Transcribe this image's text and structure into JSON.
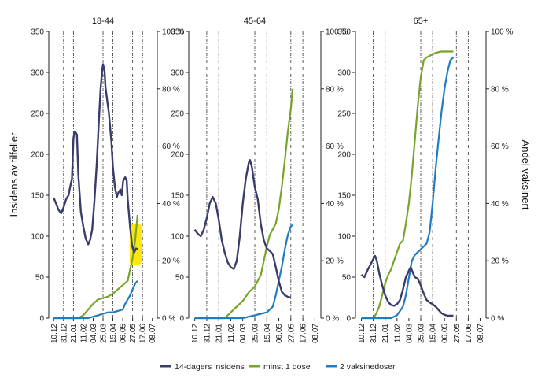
{
  "chart_data": {
    "type": "line",
    "ylabel_left": "Insidens av tilfeller",
    "ylabel_right": "Andel vaksinert",
    "left_ylim": [
      0,
      350
    ],
    "left_ticks": [
      "0",
      "50",
      "100",
      "150",
      "200",
      "250",
      "300",
      "350"
    ],
    "right_ylim": [
      0,
      100
    ],
    "right_ticks": [
      "0 %",
      "20 %",
      "40 %",
      "60 %",
      "80 %",
      "100 %"
    ],
    "x_labels": [
      "10.12",
      "31.12",
      "21.01",
      "11.02",
      "04.03",
      "25.03",
      "15.04",
      "06.05",
      "27.05",
      "17.06",
      "08.07"
    ],
    "vlines": [
      "31.12",
      "21.01",
      "25.03",
      "15.04",
      "27.05",
      "17.06"
    ],
    "colors": {
      "incidence": "#3a3c6a",
      "dose1": "#77a52b",
      "dose2": "#1f7cc0"
    },
    "panels": [
      {
        "title": "18-44",
        "incidence": [
          [
            0,
            147
          ],
          [
            1,
            132
          ],
          [
            1.5,
            128
          ],
          [
            2,
            135
          ],
          [
            2.5,
            145
          ],
          [
            3,
            150
          ],
          [
            3.4,
            162
          ],
          [
            3.7,
            170
          ],
          [
            4,
            220
          ],
          [
            4.3,
            228
          ],
          [
            4.7,
            224
          ],
          [
            5,
            175
          ],
          [
            5.5,
            130
          ],
          [
            6,
            112
          ],
          [
            6.5,
            97
          ],
          [
            7,
            90
          ],
          [
            7.4,
            96
          ],
          [
            7.8,
            108
          ],
          [
            8.2,
            138
          ],
          [
            8.7,
            185
          ],
          [
            9.1,
            235
          ],
          [
            9.5,
            280
          ],
          [
            9.8,
            300
          ],
          [
            10,
            310
          ],
          [
            10.3,
            302
          ],
          [
            10.5,
            282
          ],
          [
            10.8,
            268
          ],
          [
            11.2,
            250
          ],
          [
            11.7,
            215
          ],
          [
            12,
            185
          ],
          [
            12.4,
            160
          ],
          [
            12.8,
            148
          ],
          [
            13.1,
            153
          ],
          [
            13.5,
            157
          ],
          [
            13.8,
            150
          ],
          [
            14.1,
            168
          ],
          [
            14.5,
            172
          ],
          [
            14.8,
            168
          ],
          [
            15,
            145
          ],
          [
            15.5,
            110
          ],
          [
            15.9,
            88
          ],
          [
            16.3,
            80
          ],
          [
            16.7,
            85
          ],
          [
            17.1,
            84
          ]
        ],
        "dose1": [
          [
            0,
            0
          ],
          [
            5,
            0
          ],
          [
            6,
            1
          ],
          [
            7,
            3
          ],
          [
            8,
            5
          ],
          [
            9,
            6.5
          ],
          [
            10,
            7
          ],
          [
            11,
            7.5
          ],
          [
            12,
            8.5
          ],
          [
            13,
            10
          ],
          [
            14,
            11.5
          ],
          [
            15,
            13
          ],
          [
            15.5,
            17
          ],
          [
            16,
            21
          ],
          [
            16.5,
            27
          ],
          [
            17,
            36
          ]
        ],
        "dose2": [
          [
            0,
            0
          ],
          [
            7,
            0
          ],
          [
            8,
            0.5
          ],
          [
            9,
            1
          ],
          [
            10,
            1.5
          ],
          [
            11,
            2
          ],
          [
            12,
            2
          ],
          [
            13,
            2.5
          ],
          [
            14,
            3
          ],
          [
            14.5,
            5
          ],
          [
            15,
            6.5
          ],
          [
            15.5,
            8
          ],
          [
            16,
            10
          ],
          [
            16.5,
            12
          ],
          [
            17,
            13
          ]
        ]
      },
      {
        "title": "45-64",
        "incidence": [
          [
            0,
            108
          ],
          [
            0.5,
            103
          ],
          [
            1,
            100
          ],
          [
            1.5,
            108
          ],
          [
            2,
            122
          ],
          [
            2.5,
            140
          ],
          [
            3,
            148
          ],
          [
            3.5,
            140
          ],
          [
            4,
            120
          ],
          [
            4.5,
            95
          ],
          [
            5,
            80
          ],
          [
            5.5,
            68
          ],
          [
            6,
            62
          ],
          [
            6.5,
            60
          ],
          [
            7,
            70
          ],
          [
            7.5,
            100
          ],
          [
            8,
            140
          ],
          [
            8.5,
            170
          ],
          [
            9,
            190
          ],
          [
            9.2,
            193
          ],
          [
            9.5,
            185
          ],
          [
            10,
            160
          ],
          [
            10.5,
            145
          ],
          [
            11,
            115
          ],
          [
            11.5,
            95
          ],
          [
            12,
            85
          ],
          [
            12.5,
            82
          ],
          [
            13,
            78
          ],
          [
            13.5,
            62
          ],
          [
            14,
            45
          ],
          [
            14.5,
            32
          ],
          [
            15,
            28
          ],
          [
            15.5,
            26
          ],
          [
            16,
            25
          ]
        ],
        "dose1": [
          [
            0,
            0
          ],
          [
            5,
            0
          ],
          [
            6,
            2
          ],
          [
            7,
            4
          ],
          [
            8,
            6
          ],
          [
            9,
            9
          ],
          [
            10,
            11
          ],
          [
            11,
            15
          ],
          [
            11.5,
            20
          ],
          [
            12,
            25
          ],
          [
            12.5,
            29
          ],
          [
            13,
            31
          ],
          [
            13.5,
            33
          ],
          [
            14,
            38
          ],
          [
            14.5,
            46
          ],
          [
            15,
            55
          ],
          [
            15.5,
            65
          ],
          [
            16,
            73
          ],
          [
            16.3,
            80
          ]
        ],
        "dose2": [
          [
            0,
            0
          ],
          [
            8,
            0
          ],
          [
            9,
            0.5
          ],
          [
            10,
            1
          ],
          [
            11,
            1.5
          ],
          [
            12,
            2
          ],
          [
            12.5,
            3
          ],
          [
            13,
            4
          ],
          [
            13.5,
            8
          ],
          [
            14,
            13
          ],
          [
            14.5,
            18
          ],
          [
            15,
            24
          ],
          [
            15.5,
            29
          ],
          [
            16,
            32
          ],
          [
            16.3,
            32.5
          ]
        ]
      },
      {
        "title": "65+",
        "incidence": [
          [
            0,
            53
          ],
          [
            0.5,
            50
          ],
          [
            1,
            58
          ],
          [
            1.5,
            65
          ],
          [
            2,
            72
          ],
          [
            2.3,
            76
          ],
          [
            2.6,
            70
          ],
          [
            3,
            55
          ],
          [
            3.5,
            40
          ],
          [
            4,
            28
          ],
          [
            4.5,
            20
          ],
          [
            5,
            16
          ],
          [
            5.5,
            15
          ],
          [
            6,
            17
          ],
          [
            6.5,
            22
          ],
          [
            7,
            35
          ],
          [
            7.5,
            50
          ],
          [
            8,
            58
          ],
          [
            8.3,
            62
          ],
          [
            8.7,
            55
          ],
          [
            9,
            50
          ],
          [
            9.5,
            48
          ],
          [
            10,
            40
          ],
          [
            10.5,
            30
          ],
          [
            11,
            22
          ],
          [
            11.5,
            19
          ],
          [
            12,
            17
          ],
          [
            12.5,
            14
          ],
          [
            13,
            10
          ],
          [
            13.5,
            6
          ],
          [
            14,
            4
          ],
          [
            14.5,
            3
          ],
          [
            15,
            3
          ],
          [
            15.5,
            3
          ]
        ],
        "dose1": [
          [
            0,
            0
          ],
          [
            2,
            0
          ],
          [
            2.5,
            1.5
          ],
          [
            3,
            4
          ],
          [
            3.5,
            8
          ],
          [
            4,
            12
          ],
          [
            4.5,
            15
          ],
          [
            5,
            17
          ],
          [
            5.5,
            20
          ],
          [
            6,
            23
          ],
          [
            6.5,
            26
          ],
          [
            7,
            27
          ],
          [
            7.5,
            33
          ],
          [
            8,
            40
          ],
          [
            8.5,
            50
          ],
          [
            9,
            62
          ],
          [
            9.5,
            74
          ],
          [
            10,
            84
          ],
          [
            10.5,
            90
          ],
          [
            11,
            91
          ],
          [
            11.5,
            91.5
          ],
          [
            12,
            92
          ],
          [
            12.5,
            92.5
          ],
          [
            13,
            92.8
          ],
          [
            13.5,
            93
          ],
          [
            14,
            93
          ],
          [
            14.5,
            93
          ],
          [
            15,
            93
          ],
          [
            15.5,
            93
          ]
        ],
        "dose2": [
          [
            0,
            0
          ],
          [
            5,
            0
          ],
          [
            6,
            1
          ],
          [
            7,
            4
          ],
          [
            7.5,
            8
          ],
          [
            8,
            14
          ],
          [
            8.5,
            20
          ],
          [
            9,
            22
          ],
          [
            9.5,
            23
          ],
          [
            10,
            24
          ],
          [
            10.5,
            25
          ],
          [
            11,
            26
          ],
          [
            11.5,
            30
          ],
          [
            12,
            40
          ],
          [
            12.5,
            52
          ],
          [
            13,
            62
          ],
          [
            13.5,
            72
          ],
          [
            14,
            80
          ],
          [
            14.5,
            86
          ],
          [
            15,
            90
          ],
          [
            15.5,
            91
          ]
        ]
      }
    ],
    "legend": [
      {
        "key": "incidence",
        "label": "14-dagers insidens"
      },
      {
        "key": "dose1",
        "label": "minst 1 dose"
      },
      {
        "key": "dose2",
        "label": "2 vaksinedoser"
      }
    ],
    "highlight": {
      "panel": "18-44",
      "x_range": [
        15.4,
        17.8
      ],
      "y_range": [
        65,
        115
      ],
      "color": "#ffe600"
    }
  }
}
